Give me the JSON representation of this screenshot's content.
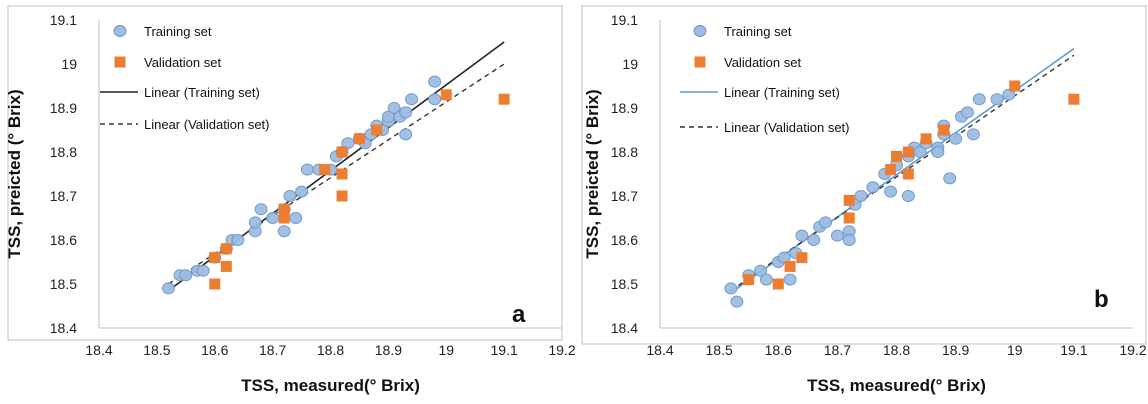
{
  "chart_data": [
    {
      "type": "scatter",
      "panel_label": "a",
      "xlabel": "TSS, measured(° Brix)",
      "ylabel": "TSS, preicted (° Brix)",
      "xlim": [
        18.4,
        19.2
      ],
      "ylim": [
        18.4,
        19.1
      ],
      "x_ticks": [
        "18.4",
        "18.5",
        "18.6",
        "18.7",
        "18.8",
        "18.9",
        "19",
        "19.1",
        "19.2"
      ],
      "y_ticks": [
        "18.4",
        "18.5",
        "18.6",
        "18.7",
        "18.8",
        "18.9",
        "19",
        "19.1"
      ],
      "grid": false,
      "legend_position": "top-left",
      "legend": [
        "Training set",
        "Validation set",
        "Linear (Training set)",
        "Linear (Validation set)"
      ],
      "colors": {
        "training": "#9dbde3",
        "training_edge": "#6f96c8",
        "validation": "#ed7d31",
        "trend_training": "#222222",
        "trend_validation": "#333333"
      },
      "series": [
        {
          "name": "Training set",
          "marker": "circle",
          "points": [
            [
              18.52,
              18.49
            ],
            [
              18.54,
              18.52
            ],
            [
              18.55,
              18.52
            ],
            [
              18.57,
              18.53
            ],
            [
              18.58,
              18.53
            ],
            [
              18.6,
              18.56
            ],
            [
              18.62,
              18.58
            ],
            [
              18.63,
              18.6
            ],
            [
              18.64,
              18.6
            ],
            [
              18.67,
              18.62
            ],
            [
              18.67,
              18.64
            ],
            [
              18.68,
              18.67
            ],
            [
              18.7,
              18.65
            ],
            [
              18.72,
              18.62
            ],
            [
              18.72,
              18.67
            ],
            [
              18.73,
              18.7
            ],
            [
              18.74,
              18.65
            ],
            [
              18.75,
              18.71
            ],
            [
              18.76,
              18.76
            ],
            [
              18.78,
              18.76
            ],
            [
              18.8,
              18.76
            ],
            [
              18.81,
              18.79
            ],
            [
              18.82,
              18.8
            ],
            [
              18.83,
              18.82
            ],
            [
              18.85,
              18.83
            ],
            [
              18.86,
              18.82
            ],
            [
              18.87,
              18.84
            ],
            [
              18.88,
              18.86
            ],
            [
              18.89,
              18.85
            ],
            [
              18.9,
              18.87
            ],
            [
              18.9,
              18.88
            ],
            [
              18.91,
              18.9
            ],
            [
              18.92,
              18.88
            ],
            [
              18.93,
              18.89
            ],
            [
              18.93,
              18.84
            ],
            [
              18.94,
              18.92
            ],
            [
              18.98,
              18.96
            ],
            [
              18.98,
              18.92
            ]
          ]
        },
        {
          "name": "Validation set",
          "marker": "square",
          "points": [
            [
              18.6,
              18.5
            ],
            [
              18.6,
              18.56
            ],
            [
              18.62,
              18.54
            ],
            [
              18.62,
              18.58
            ],
            [
              18.72,
              18.65
            ],
            [
              18.72,
              18.67
            ],
            [
              18.79,
              18.76
            ],
            [
              18.82,
              18.8
            ],
            [
              18.82,
              18.75
            ],
            [
              18.82,
              18.7
            ],
            [
              18.85,
              18.83
            ],
            [
              18.88,
              18.85
            ],
            [
              19.0,
              18.93
            ],
            [
              19.1,
              18.92
            ]
          ]
        },
        {
          "name": "Linear (Training set)",
          "style": "solid",
          "line": [
            [
              18.52,
              18.485
            ],
            [
              19.1,
              19.05
            ]
          ]
        },
        {
          "name": "Linear (Validation set)",
          "style": "dashed",
          "line": [
            [
              18.52,
              18.5
            ],
            [
              19.1,
              19.0
            ]
          ]
        }
      ]
    },
    {
      "type": "scatter",
      "panel_label": "b",
      "xlabel": "TSS, measured(° Brix)",
      "ylabel": "TSS, preicted (° Brix)",
      "xlim": [
        18.4,
        19.2
      ],
      "ylim": [
        18.4,
        19.1
      ],
      "x_ticks": [
        "18.4",
        "18.5",
        "18.6",
        "18.7",
        "18.8",
        "18.9",
        "19",
        "19.1",
        "19.2"
      ],
      "y_ticks": [
        "18.4",
        "18.5",
        "18.6",
        "18.7",
        "18.8",
        "18.9",
        "19",
        "19.1"
      ],
      "grid": false,
      "legend_position": "top-left",
      "legend": [
        "Training set",
        "Validation set",
        "Linear (Training set)",
        "Linear (Validation set)"
      ],
      "colors": {
        "training": "#9dbde3",
        "training_edge": "#6f96c8",
        "validation": "#ed7d31",
        "trend_training": "#5b9bd5",
        "trend_validation": "#333333"
      },
      "series": [
        {
          "name": "Training set",
          "marker": "circle",
          "points": [
            [
              18.52,
              18.49
            ],
            [
              18.53,
              18.46
            ],
            [
              18.55,
              18.52
            ],
            [
              18.57,
              18.53
            ],
            [
              18.58,
              18.51
            ],
            [
              18.6,
              18.55
            ],
            [
              18.61,
              18.56
            ],
            [
              18.62,
              18.51
            ],
            [
              18.63,
              18.57
            ],
            [
              18.64,
              18.61
            ],
            [
              18.66,
              18.6
            ],
            [
              18.67,
              18.63
            ],
            [
              18.68,
              18.64
            ],
            [
              18.7,
              18.61
            ],
            [
              18.72,
              18.62
            ],
            [
              18.72,
              18.6
            ],
            [
              18.73,
              18.68
            ],
            [
              18.74,
              18.7
            ],
            [
              18.76,
              18.72
            ],
            [
              18.78,
              18.75
            ],
            [
              18.79,
              18.71
            ],
            [
              18.8,
              18.77
            ],
            [
              18.82,
              18.7
            ],
            [
              18.82,
              18.79
            ],
            [
              18.83,
              18.81
            ],
            [
              18.84,
              18.8
            ],
            [
              18.85,
              18.82
            ],
            [
              18.87,
              18.81
            ],
            [
              18.87,
              18.8
            ],
            [
              18.88,
              18.84
            ],
            [
              18.88,
              18.86
            ],
            [
              18.89,
              18.74
            ],
            [
              18.9,
              18.83
            ],
            [
              18.91,
              18.88
            ],
            [
              18.92,
              18.89
            ],
            [
              18.93,
              18.84
            ],
            [
              18.94,
              18.92
            ],
            [
              18.97,
              18.92
            ],
            [
              18.99,
              18.93
            ]
          ]
        },
        {
          "name": "Validation set",
          "marker": "square",
          "points": [
            [
              18.55,
              18.51
            ],
            [
              18.6,
              18.5
            ],
            [
              18.62,
              18.54
            ],
            [
              18.64,
              18.56
            ],
            [
              18.72,
              18.65
            ],
            [
              18.72,
              18.69
            ],
            [
              18.79,
              18.76
            ],
            [
              18.8,
              18.79
            ],
            [
              18.82,
              18.8
            ],
            [
              18.82,
              18.75
            ],
            [
              18.85,
              18.83
            ],
            [
              18.88,
              18.85
            ],
            [
              19.0,
              18.95
            ],
            [
              19.1,
              18.92
            ]
          ]
        },
        {
          "name": "Linear (Training set)",
          "style": "solid",
          "line": [
            [
              18.52,
              18.48
            ],
            [
              19.1,
              19.035
            ]
          ]
        },
        {
          "name": "Linear (Validation set)",
          "style": "dashed",
          "line": [
            [
              18.52,
              18.485
            ],
            [
              19.1,
              19.02
            ]
          ]
        }
      ]
    }
  ]
}
